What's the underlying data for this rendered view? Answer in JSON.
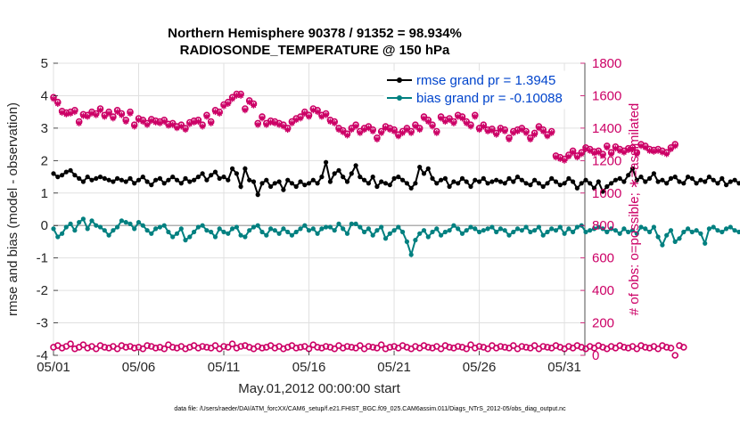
{
  "chart_data": {
    "type": "line",
    "title": "Northern Hemisphere 90378 / 91352 = 98.934%",
    "subtitle": "RADIOSONDE_TEMPERATURE @ 150 hPa",
    "xlabel": "May.01,2012 00:00:00 start",
    "ylabel_left": "rmse and bias (model - observation)",
    "ylabel_right": "# of obs: o=possible; ∗=assimilated",
    "footnote": "data file: /Users/raeder/DAI/ATM_forcXX/CAM6_setup/f.e21.FHIST_BGC.f09_025.CAM6assim.011/Diags_NTrS_2012-05/obs_diag_output.nc",
    "xlim": [
      1,
      32.2
    ],
    "ylim_left": [
      -4,
      5
    ],
    "ylim_right": [
      0,
      1800
    ],
    "x_ticks": [
      1,
      6,
      11,
      16,
      21,
      26,
      31
    ],
    "x_tick_labels": [
      "05/01",
      "05/06",
      "05/11",
      "05/16",
      "05/21",
      "05/26",
      "05/31"
    ],
    "y_ticks_left": [
      -4,
      -3,
      -2,
      -1,
      0,
      1,
      2,
      3,
      4,
      5
    ],
    "y_ticks_right": [
      0,
      200,
      400,
      600,
      800,
      1000,
      1200,
      1400,
      1600,
      1800
    ],
    "reference_line": 0,
    "legend_position": "top-right",
    "x_start": 1,
    "x_step": 0.25,
    "series": [
      {
        "name": "rmse grand pr = 1.3945",
        "axis": "left",
        "color": "#000000",
        "marker": "dot-line",
        "values": [
          1.6,
          1.5,
          1.55,
          1.65,
          1.7,
          1.55,
          1.45,
          1.35,
          1.5,
          1.4,
          1.45,
          1.5,
          1.45,
          1.4,
          1.35,
          1.45,
          1.4,
          1.35,
          1.45,
          1.3,
          1.4,
          1.5,
          1.35,
          1.25,
          1.4,
          1.45,
          1.3,
          1.4,
          1.5,
          1.4,
          1.3,
          1.45,
          1.35,
          1.4,
          1.5,
          1.6,
          1.4,
          1.55,
          1.65,
          1.45,
          1.5,
          1.4,
          1.75,
          1.6,
          1.2,
          1.75,
          1.4,
          1.35,
          0.95,
          1.3,
          1.4,
          1.2,
          1.3,
          1.35,
          1.1,
          1.4,
          1.3,
          1.2,
          1.35,
          1.25,
          1.3,
          1.4,
          1.3,
          1.5,
          1.95,
          1.35,
          1.6,
          1.7,
          1.5,
          1.35,
          1.6,
          1.85,
          1.5,
          1.4,
          1.3,
          1.5,
          1.2,
          1.35,
          1.3,
          1.25,
          1.45,
          1.5,
          1.4,
          1.3,
          1.15,
          1.3,
          1.8,
          1.6,
          1.75,
          1.45,
          1.3,
          1.4,
          1.45,
          1.2,
          1.35,
          1.3,
          1.45,
          1.35,
          1.2,
          1.4,
          1.35,
          1.45,
          1.3,
          1.35,
          1.4,
          1.35,
          1.3,
          1.45,
          1.35,
          1.5,
          1.4,
          1.3,
          1.25,
          1.4,
          1.3,
          1.2,
          1.3,
          1.45,
          1.35,
          1.25,
          1.3,
          1.45,
          1.35,
          1.15,
          1.3,
          1.4,
          1.3,
          1.15,
          1.35,
          1.05,
          1.2,
          1.3,
          1.4,
          1.45,
          1.35,
          1.55,
          1.75,
          1.4,
          1.5,
          1.35,
          1.45,
          1.6,
          1.35,
          1.4,
          1.3,
          1.45,
          1.5,
          1.35,
          1.3,
          1.5,
          1.45,
          1.3,
          1.4,
          1.35,
          1.5,
          1.4,
          1.3,
          1.45,
          1.25,
          1.35,
          1.4,
          1.3,
          1.4,
          1.2,
          1.3,
          1.4,
          1.35,
          1.55,
          1.3,
          1.4,
          1.35,
          1.1,
          1.0,
          1.3,
          1.4,
          1.35,
          1.25,
          1.45,
          1.35,
          1.25,
          1.4,
          1.45,
          1.3,
          1.4,
          1.2,
          1.3,
          1.35,
          1.25,
          1.4,
          1.3,
          1.35,
          1.25,
          1.15,
          1.3,
          1.2,
          1.35,
          1.1,
          1.3,
          1.4,
          1.45,
          1.55,
          1.35,
          1.5,
          1.55,
          1.5
        ]
      },
      {
        "name": "bias grand pr = -0.10088",
        "axis": "left",
        "color": "#008080",
        "marker": "dot-line",
        "values": [
          -0.1,
          -0.35,
          -0.25,
          -0.05,
          0.05,
          -0.15,
          0.1,
          0.2,
          -0.1,
          0.15,
          0.0,
          -0.05,
          -0.15,
          -0.3,
          -0.15,
          -0.05,
          0.15,
          0.1,
          0.05,
          -0.1,
          0.1,
          0.0,
          -0.15,
          -0.25,
          -0.1,
          -0.05,
          0.0,
          -0.2,
          -0.35,
          -0.25,
          -0.1,
          -0.45,
          -0.35,
          -0.2,
          -0.05,
          0.0,
          -0.15,
          -0.2,
          -0.35,
          -0.1,
          -0.2,
          -0.25,
          -0.1,
          -0.05,
          -0.3,
          -0.35,
          -0.15,
          -0.05,
          0.0,
          -0.2,
          -0.3,
          -0.1,
          -0.15,
          -0.25,
          -0.1,
          -0.2,
          -0.3,
          -0.2,
          -0.1,
          0.0,
          -0.15,
          -0.1,
          -0.25,
          -0.1,
          -0.05,
          -0.05,
          -0.15,
          0.05,
          -0.1,
          -0.25,
          0.05,
          0.05,
          -0.05,
          -0.2,
          -0.1,
          -0.3,
          -0.15,
          -0.05,
          -0.4,
          -0.25,
          -0.15,
          -0.05,
          -0.2,
          -0.5,
          -0.9,
          -0.45,
          -0.25,
          -0.15,
          -0.35,
          -0.2,
          -0.1,
          -0.3,
          -0.2,
          -0.15,
          0.0,
          -0.1,
          -0.25,
          -0.15,
          -0.05,
          -0.1,
          -0.2,
          -0.15,
          -0.1,
          -0.05,
          -0.2,
          -0.1,
          -0.15,
          -0.3,
          -0.2,
          -0.1,
          -0.15,
          -0.05,
          -0.2,
          -0.15,
          -0.05,
          -0.3,
          -0.2,
          -0.1,
          -0.15,
          -0.05,
          -0.25,
          -0.1,
          -0.2,
          -0.05,
          0.0,
          -0.2,
          -0.15,
          -0.1,
          -0.05,
          -0.1,
          -0.2,
          -0.1,
          -0.15,
          -0.25,
          -0.1,
          -0.2,
          -0.15,
          -0.25,
          -0.05,
          -0.1,
          -0.2,
          -0.05,
          -0.35,
          -0.6,
          -0.3,
          -0.15,
          -0.5,
          -0.4,
          -0.2,
          -0.1,
          -0.2,
          -0.15,
          -0.25,
          -0.55,
          -0.1,
          -0.05,
          -0.15,
          -0.2,
          -0.1,
          -0.05,
          -0.15,
          -0.2,
          -0.1,
          -0.25,
          -0.3,
          -0.15,
          0.0,
          -0.2,
          -0.1,
          -0.25,
          -0.2,
          -0.05,
          -0.15,
          -0.25,
          -0.2,
          -0.1,
          -0.2,
          -0.1,
          -0.25,
          -0.3,
          -0.15,
          -0.35,
          -0.15,
          -0.2,
          -0.3,
          -0.1,
          -0.2,
          -0.25,
          -0.35,
          -0.15,
          -0.25,
          -0.1,
          -0.2,
          -0.45,
          -0.25,
          -0.15,
          0.05,
          -0.3,
          -0.2,
          -0.1,
          0.25,
          -0.15,
          -0.35,
          -0.2,
          -0.1,
          -0.15,
          -0.25
        ]
      },
      {
        "name": "possible obs",
        "axis": "right",
        "color": "#cc0066",
        "marker": "o",
        "values": [
          1590,
          1560,
          1505,
          1495,
          1500,
          1510,
          1440,
          1485,
          1480,
          1500,
          1490,
          1520,
          1480,
          1500,
          1470,
          1510,
          1490,
          1450,
          1500,
          1420,
          1460,
          1450,
          1430,
          1455,
          1445,
          1440,
          1450,
          1425,
          1430,
          1410,
          1420,
          1400,
          1435,
          1445,
          1450,
          1420,
          1480,
          1440,
          1510,
          1500,
          1545,
          1560,
          1590,
          1610,
          1610,
          1520,
          1570,
          1550,
          1430,
          1470,
          1430,
          1445,
          1440,
          1430,
          1420,
          1400,
          1440,
          1460,
          1470,
          1500,
          1480,
          1520,
          1510,
          1480,
          1490,
          1450,
          1440,
          1400,
          1385,
          1365,
          1400,
          1420,
          1380,
          1400,
          1410,
          1390,
          1340,
          1380,
          1410,
          1400,
          1390,
          1360,
          1380,
          1400,
          1380,
          1420,
          1400,
          1470,
          1450,
          1420,
          1380,
          1470,
          1450,
          1460,
          1440,
          1480,
          1470,
          1440,
          1420,
          1480,
          1400,
          1420,
          1390,
          1395,
          1370,
          1400,
          1390,
          1340,
          1380,
          1390,
          1400,
          1380,
          1340,
          1370,
          1410,
          1390,
          1360,
          1380,
          1230,
          1220,
          1210,
          1235,
          1260,
          1230,
          1250,
          1280,
          1270,
          1255,
          1260,
          1240,
          1290,
          1250,
          1285,
          1270,
          1260,
          1275,
          1280,
          1250,
          1300,
          1290,
          1270,
          1265,
          1270,
          1260,
          1250,
          1280,
          1300
        ]
      },
      {
        "name": "assimilated obs",
        "axis": "right",
        "color": "#cc0066",
        "marker": "*",
        "values": [
          1580,
          1550,
          1495,
          1485,
          1490,
          1500,
          1430,
          1475,
          1470,
          1490,
          1480,
          1510,
          1470,
          1490,
          1460,
          1500,
          1480,
          1440,
          1490,
          1410,
          1450,
          1440,
          1420,
          1445,
          1435,
          1430,
          1440,
          1415,
          1420,
          1400,
          1410,
          1390,
          1425,
          1435,
          1440,
          1410,
          1470,
          1430,
          1500,
          1490,
          1535,
          1550,
          1580,
          1600,
          1600,
          1510,
          1560,
          1540,
          1420,
          1460,
          1420,
          1435,
          1430,
          1420,
          1410,
          1390,
          1430,
          1450,
          1460,
          1490,
          1470,
          1510,
          1500,
          1470,
          1480,
          1440,
          1430,
          1390,
          1375,
          1355,
          1390,
          1410,
          1370,
          1390,
          1400,
          1380,
          1330,
          1370,
          1400,
          1390,
          1380,
          1350,
          1370,
          1390,
          1370,
          1410,
          1390,
          1460,
          1440,
          1410,
          1370,
          1460,
          1440,
          1450,
          1430,
          1470,
          1460,
          1430,
          1410,
          1470,
          1390,
          1410,
          1380,
          1385,
          1360,
          1390,
          1380,
          1330,
          1370,
          1380,
          1390,
          1370,
          1330,
          1360,
          1400,
          1380,
          1350,
          1370,
          1220,
          1210,
          1200,
          1225,
          1250,
          1220,
          1240,
          1270,
          1260,
          1245,
          1250,
          1230,
          1280,
          1240,
          1275,
          1260,
          1250,
          1265,
          1270,
          1240,
          1290,
          1280,
          1260,
          1255,
          1260,
          1250,
          1240,
          1270,
          1290
        ]
      },
      {
        "name": "possible obs (lower)",
        "axis": "right",
        "color": "#cc0066",
        "marker": "o",
        "values": [
          50,
          60,
          45,
          55,
          70,
          40,
          50,
          65,
          45,
          55,
          40,
          60,
          50,
          45,
          55,
          40,
          60,
          50,
          55,
          45,
          50,
          40,
          60,
          55,
          45,
          50,
          40,
          65,
          50,
          45,
          55,
          40,
          50,
          60,
          45,
          55,
          50,
          45,
          60,
          40,
          55,
          50,
          70,
          45,
          55,
          60,
          50,
          40,
          55,
          45,
          50,
          60,
          45,
          55,
          40,
          50,
          60,
          45,
          50,
          55,
          40,
          65,
          50,
          45,
          55,
          50,
          40,
          60,
          45,
          55,
          50,
          45,
          60,
          40,
          55,
          50,
          45,
          65,
          40,
          50,
          55,
          45,
          60,
          50,
          40,
          55,
          45,
          60,
          50,
          45,
          55,
          40,
          60,
          50,
          45,
          55,
          50,
          40,
          65,
          45,
          55,
          50,
          40,
          60,
          45,
          55,
          50,
          45,
          60,
          40,
          55,
          50,
          45,
          60,
          40,
          55,
          50,
          45,
          60,
          50,
          40,
          55,
          45,
          60,
          50,
          40,
          55,
          45,
          60,
          50,
          40,
          55,
          45,
          60,
          50,
          45,
          55,
          40,
          60,
          50,
          45,
          55,
          40,
          60,
          50,
          45,
          0,
          60,
          50
        ]
      }
    ]
  }
}
